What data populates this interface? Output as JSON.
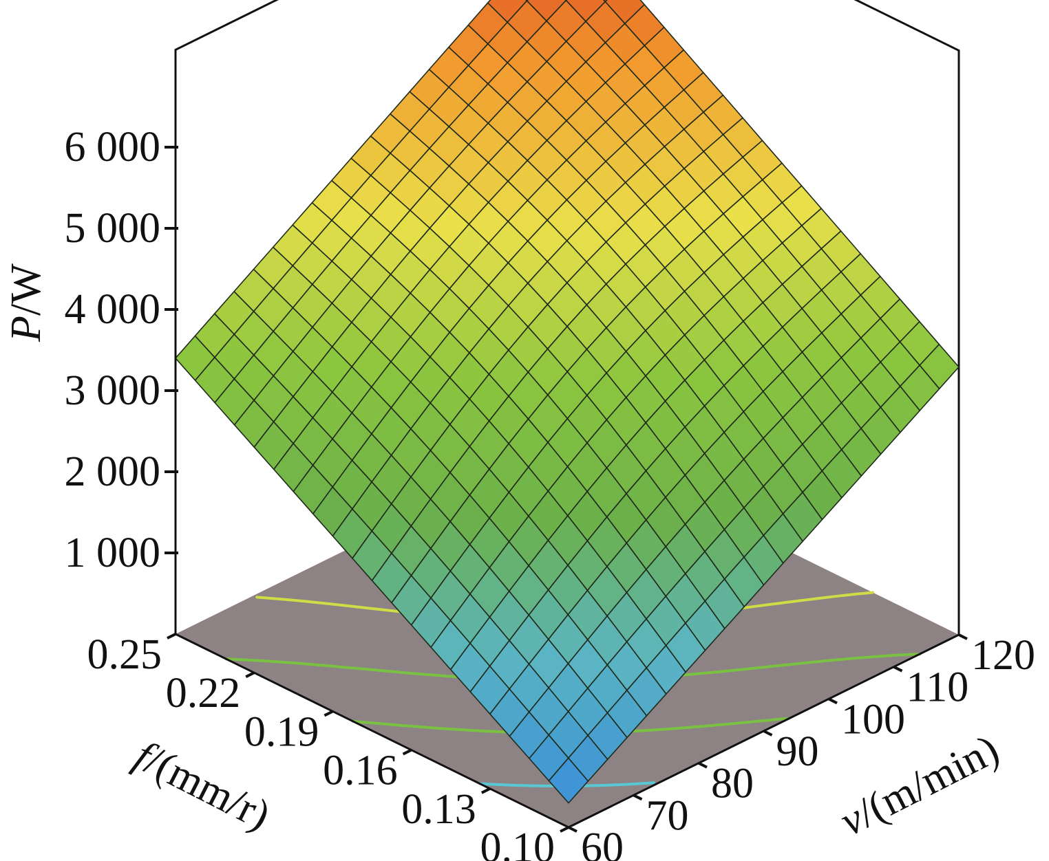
{
  "chart_data": {
    "type": "surface3d",
    "title": "",
    "x_axis": {
      "variable": "f",
      "unit": "/(mm/r)",
      "range": [
        0.1,
        0.25
      ],
      "ticks": [
        "0.25",
        "0.22",
        "0.19",
        "0.16",
        "0.13",
        "0.10"
      ],
      "tick_values": [
        0.25,
        0.22,
        0.19,
        0.16,
        0.13,
        0.1
      ]
    },
    "y_axis": {
      "variable": "v",
      "unit": "/(m/min)",
      "range": [
        60,
        120
      ],
      "ticks": [
        "60",
        "70",
        "80",
        "90",
        "100",
        "110",
        "120"
      ],
      "tick_values": [
        60,
        70,
        80,
        90,
        100,
        110,
        120
      ]
    },
    "z_axis": {
      "variable": "P",
      "unit": "/W",
      "range": [
        0,
        6500
      ],
      "ticks": [
        "1 000",
        "2 000",
        "3 000",
        "4 000",
        "5 000",
        "6 000"
      ],
      "tick_values": [
        1000,
        2000,
        3000,
        4000,
        5000,
        6000
      ]
    },
    "surface": {
      "grid_size": 20,
      "corner_values": [
        {
          "f": 0.1,
          "v": 60,
          "P": 300
        },
        {
          "f": 0.25,
          "v": 60,
          "P": 3400
        },
        {
          "f": 0.1,
          "v": 120,
          "P": 3300
        },
        {
          "f": 0.25,
          "v": 120,
          "P": 6500
        }
      ],
      "colormap": [
        "#3a8fd8",
        "#5bb5c2",
        "#6bb04a",
        "#8cc63f",
        "#e9e04a",
        "#f29a2e",
        "#d9341f"
      ]
    },
    "floor_color": "#8d8384",
    "contours": [
      {
        "level": 1000,
        "color": "#58c9d4"
      },
      {
        "level": 2000,
        "color": "#7ac141"
      },
      {
        "level": 3000,
        "color": "#7ac141"
      },
      {
        "level": 4000,
        "color": "#cfdc45"
      },
      {
        "level": 5000,
        "color": "#e8e44f"
      },
      {
        "level": 6000,
        "color": "#f08b2a"
      }
    ]
  }
}
